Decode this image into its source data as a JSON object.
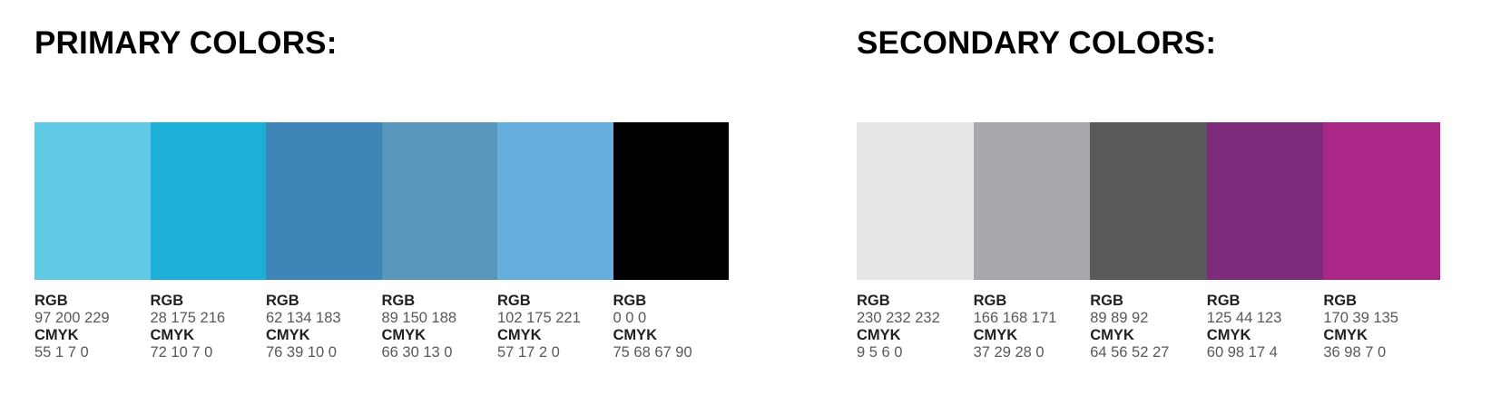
{
  "labels": {
    "rgb": "RGB",
    "cmyk": "CMYK"
  },
  "primary": {
    "title": "PRIMARY COLORS:",
    "swatches": [
      {
        "name": "light-sky-blue",
        "hex": "#61C8E5",
        "rgb": "97 200 229",
        "cmyk": "55 1 7 0"
      },
      {
        "name": "cyan-blue",
        "hex": "#1CAFD8",
        "rgb": "28 175 216",
        "cmyk": "72 10 7 0"
      },
      {
        "name": "steel-blue",
        "hex": "#3E86B7",
        "rgb": "62 134 183",
        "cmyk": "76 39 10 0"
      },
      {
        "name": "slate-blue",
        "hex": "#5996BC",
        "rgb": "89 150 188",
        "cmyk": "66 30 13 0"
      },
      {
        "name": "soft-blue",
        "hex": "#66AFDD",
        "rgb": "102 175 221",
        "cmyk": "57 17 2 0"
      },
      {
        "name": "black",
        "hex": "#000000",
        "rgb": "0 0 0",
        "cmyk": "75 68 67 90"
      }
    ]
  },
  "secondary": {
    "title": "SECONDARY COLORS:",
    "swatches": [
      {
        "name": "light-gray",
        "hex": "#E6E8E8",
        "rgb": "230 232 232",
        "cmyk": "9 5 6 0"
      },
      {
        "name": "medium-gray",
        "hex": "#A6A8AB",
        "rgb": "166 168 171",
        "cmyk": "37 29 28 0"
      },
      {
        "name": "dark-gray",
        "hex": "#59595C",
        "rgb": "89 89 92",
        "cmyk": "64 56 52 27"
      },
      {
        "name": "deep-purple",
        "hex": "#7D2C7B",
        "rgb": "125 44 123",
        "cmyk": "60 98 17 4"
      },
      {
        "name": "magenta",
        "hex": "#AA2787",
        "rgb": "170 39 135",
        "cmyk": "36 98 7 0"
      }
    ]
  }
}
